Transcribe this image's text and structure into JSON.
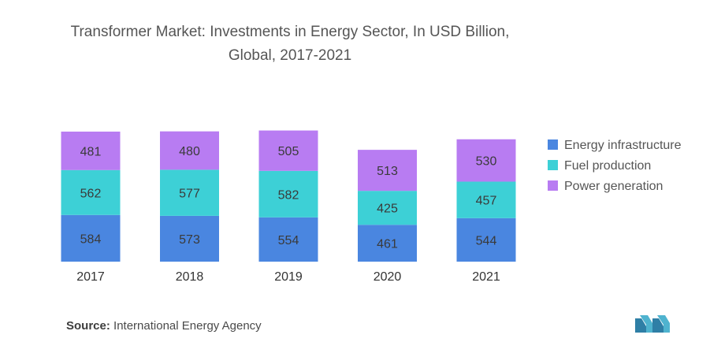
{
  "chart_data": {
    "type": "bar",
    "stacked": true,
    "title": "Transformer Market: Investments in Energy Sector, In USD Billion,",
    "subtitle": "Global, 2017-2021",
    "categories": [
      "2017",
      "2018",
      "2019",
      "2020",
      "2021"
    ],
    "series": [
      {
        "name": "Energy infrastructure",
        "color": "#4a86e0",
        "values": [
          584,
          573,
          554,
          461,
          544
        ]
      },
      {
        "name": "Fuel production",
        "color": "#3dd0d6",
        "values": [
          562,
          577,
          582,
          425,
          457
        ]
      },
      {
        "name": "Power generation",
        "color": "#b87cf2",
        "values": [
          481,
          480,
          505,
          513,
          530
        ]
      }
    ],
    "legend_position": "right",
    "grid": false,
    "data_labels": true
  },
  "source": {
    "label": "Source:",
    "text": "International Energy Agency"
  },
  "logo": "mordor-intelligence-logo"
}
